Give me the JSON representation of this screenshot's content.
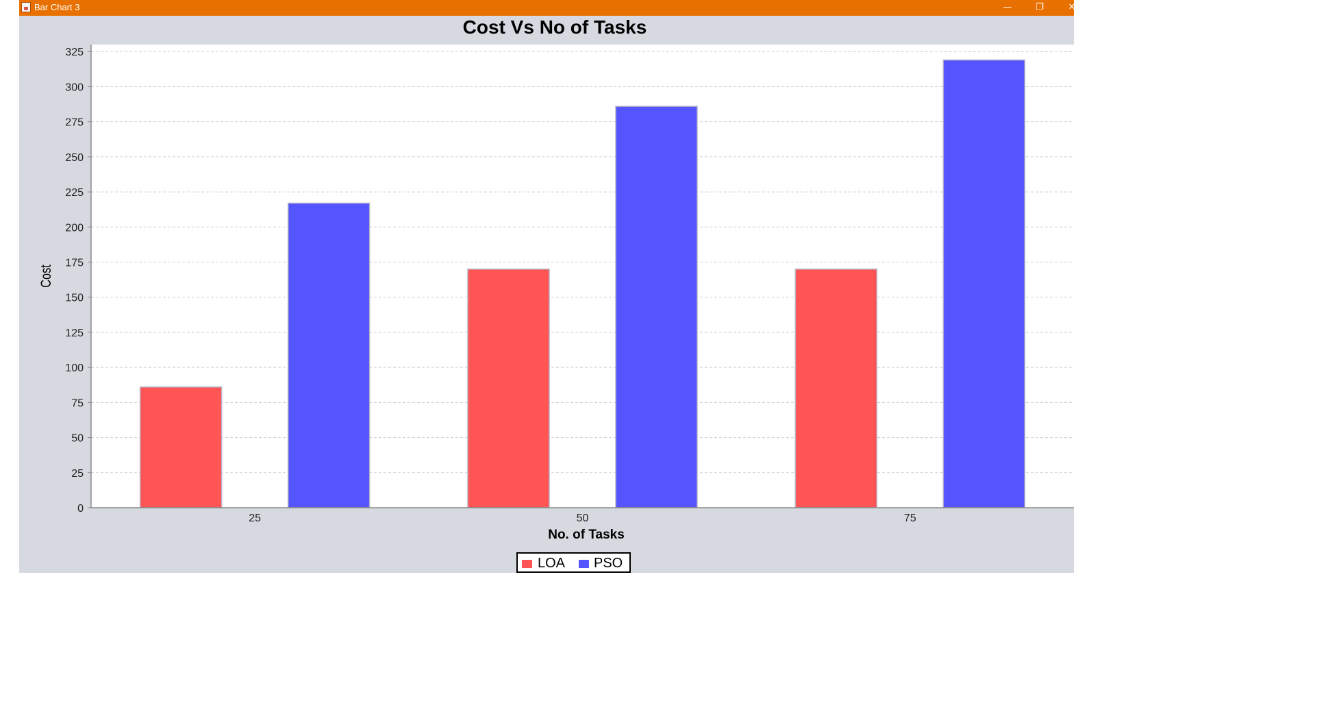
{
  "window": {
    "title": "Bar Chart 3",
    "minimize_glyph": "—",
    "restore_glyph": "❐",
    "close_glyph": "✕",
    "titlebar_color": "#e87000"
  },
  "chart_data": {
    "type": "bar",
    "title": "Cost Vs No of Tasks",
    "xlabel": "No. of Tasks",
    "ylabel": "Cost",
    "categories": [
      "25",
      "50",
      "75"
    ],
    "series": [
      {
        "name": "LOA",
        "color": "#ff5555",
        "values": [
          86,
          170,
          170
        ]
      },
      {
        "name": "PSO",
        "color": "#5555ff",
        "values": [
          217,
          286,
          319
        ]
      }
    ],
    "ylim": [
      0,
      330
    ],
    "yticks": [
      0,
      25,
      50,
      75,
      100,
      125,
      150,
      175,
      200,
      225,
      250,
      275,
      300,
      325
    ],
    "grid": true,
    "legend": "bottom"
  }
}
